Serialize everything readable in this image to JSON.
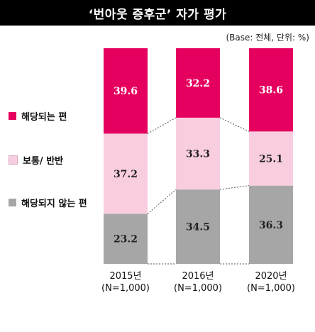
{
  "header": {
    "title": "‘번아웃 증후군’ 자가 평가"
  },
  "note": "(Base: 전체, 단위: %)",
  "chart_data": {
    "type": "bar",
    "stacked": true,
    "categories": [
      "2015년",
      "2016년",
      "2020년"
    ],
    "category_subtitles": [
      "(N=1,000)",
      "(N=1,000)",
      "(N=1,000)"
    ],
    "series": [
      {
        "name": "해당되지 않는 편",
        "color": "#a6a6a6",
        "values": [
          23.2,
          34.5,
          36.3
        ]
      },
      {
        "name": "보통/ 반반",
        "color": "#f9cde0",
        "values": [
          37.2,
          33.3,
          25.1
        ]
      },
      {
        "name": "해당되는 편",
        "color": "#e5005f",
        "values": [
          39.6,
          32.2,
          38.6
        ]
      }
    ],
    "legend": [
      "해당되는 편",
      "보통/ 반반",
      "해당되지 않는 편"
    ],
    "legend_position": "left",
    "ylim": [
      0,
      100
    ],
    "connector_lines": "dotted",
    "grid": false
  }
}
